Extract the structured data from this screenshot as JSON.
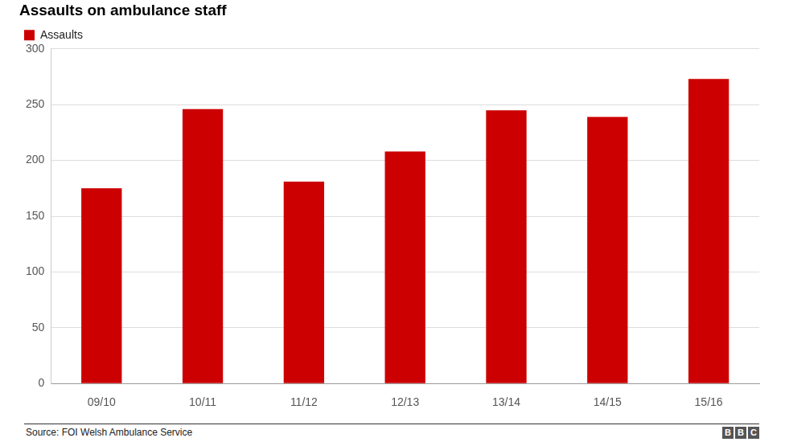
{
  "chart_data": {
    "type": "bar",
    "title": "Assaults on ambulance staff",
    "categories": [
      "09/10",
      "10/11",
      "11/12",
      "12/13",
      "13/14",
      "14/15",
      "15/16"
    ],
    "series": [
      {
        "name": "Assaults",
        "color": "#cc0000",
        "values": [
          175,
          246,
          181,
          208,
          245,
          239,
          273
        ]
      }
    ],
    "ylim": [
      0,
      300
    ],
    "yticks": [
      0,
      50,
      100,
      150,
      200,
      250,
      300
    ],
    "grid": true,
    "legend": "top-left"
  },
  "source": "Source: FOI Welsh Ambulance Service",
  "logo": "BBC"
}
